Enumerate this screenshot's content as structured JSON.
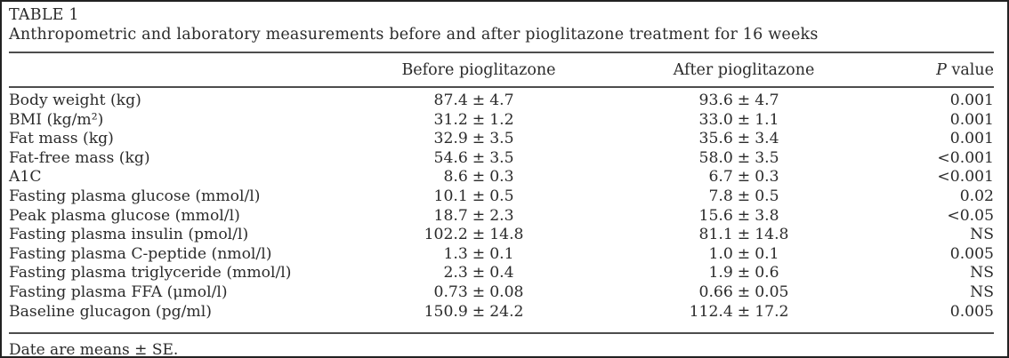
{
  "table": {
    "label": "TABLE 1",
    "caption": "Anthropometric and laboratory measurements before and after pioglitazone treatment for 16 weeks",
    "header": {
      "before": "Before pioglitazone",
      "after": "After pioglitazone",
      "p_italic": "P",
      "p_rest": " value"
    },
    "rows": [
      {
        "label": "Body weight (kg)",
        "before": "87.4 ± 4.7",
        "after": "93.6 ± 4.7",
        "p": "0.001"
      },
      {
        "label": "BMI (kg/m²)",
        "before": "31.2 ± 1.2",
        "after": "33.0 ± 1.1",
        "p": "0.001"
      },
      {
        "label": "Fat mass (kg)",
        "before": "32.9 ± 3.5",
        "after": "35.6 ± 3.4",
        "p": "0.001"
      },
      {
        "label": "Fat-free mass (kg)",
        "before": "54.6 ± 3.5",
        "after": "58.0 ± 3.5",
        "p": "<0.001"
      },
      {
        "label": "A1C",
        "before": "8.6 ± 0.3",
        "after": "6.7 ± 0.3",
        "p": "<0.001"
      },
      {
        "label": "Fasting plasma glucose (mmol/l)",
        "before": "10.1 ± 0.5",
        "after": "7.8 ± 0.5",
        "p": "0.02"
      },
      {
        "label": "Peak plasma glucose (mmol/l)",
        "before": "18.7 ± 2.3",
        "after": "15.6 ± 3.8",
        "p": "<0.05"
      },
      {
        "label": "Fasting plasma insulin (pmol/l)",
        "before": "102.2 ± 14.8",
        "after": "81.1 ± 14.8",
        "p": "NS"
      },
      {
        "label": "Fasting plasma C-peptide (nmol/l)",
        "before": "1.3 ± 0.1",
        "after": "1.0 ± 0.1",
        "p": "0.005"
      },
      {
        "label": "Fasting plasma triglyceride (mmol/l)",
        "before": "2.3 ± 0.4",
        "after": "1.9 ± 0.6",
        "p": "NS"
      },
      {
        "label": "Fasting plasma FFA (μmol/l)",
        "before": "0.73 ± 0.08",
        "after": "0.66 ± 0.05",
        "p": "NS"
      },
      {
        "label": "Baseline glucagon (pg/ml)",
        "before": "150.9 ± 24.2",
        "after": "112.4 ± 17.2",
        "p": "0.005"
      }
    ],
    "footnote": "Date are means ± SE.",
    "colors": {
      "text": "#2b2b2b",
      "rule": "#4d4d4d",
      "border": "#222222",
      "background": "#ffffff"
    }
  }
}
